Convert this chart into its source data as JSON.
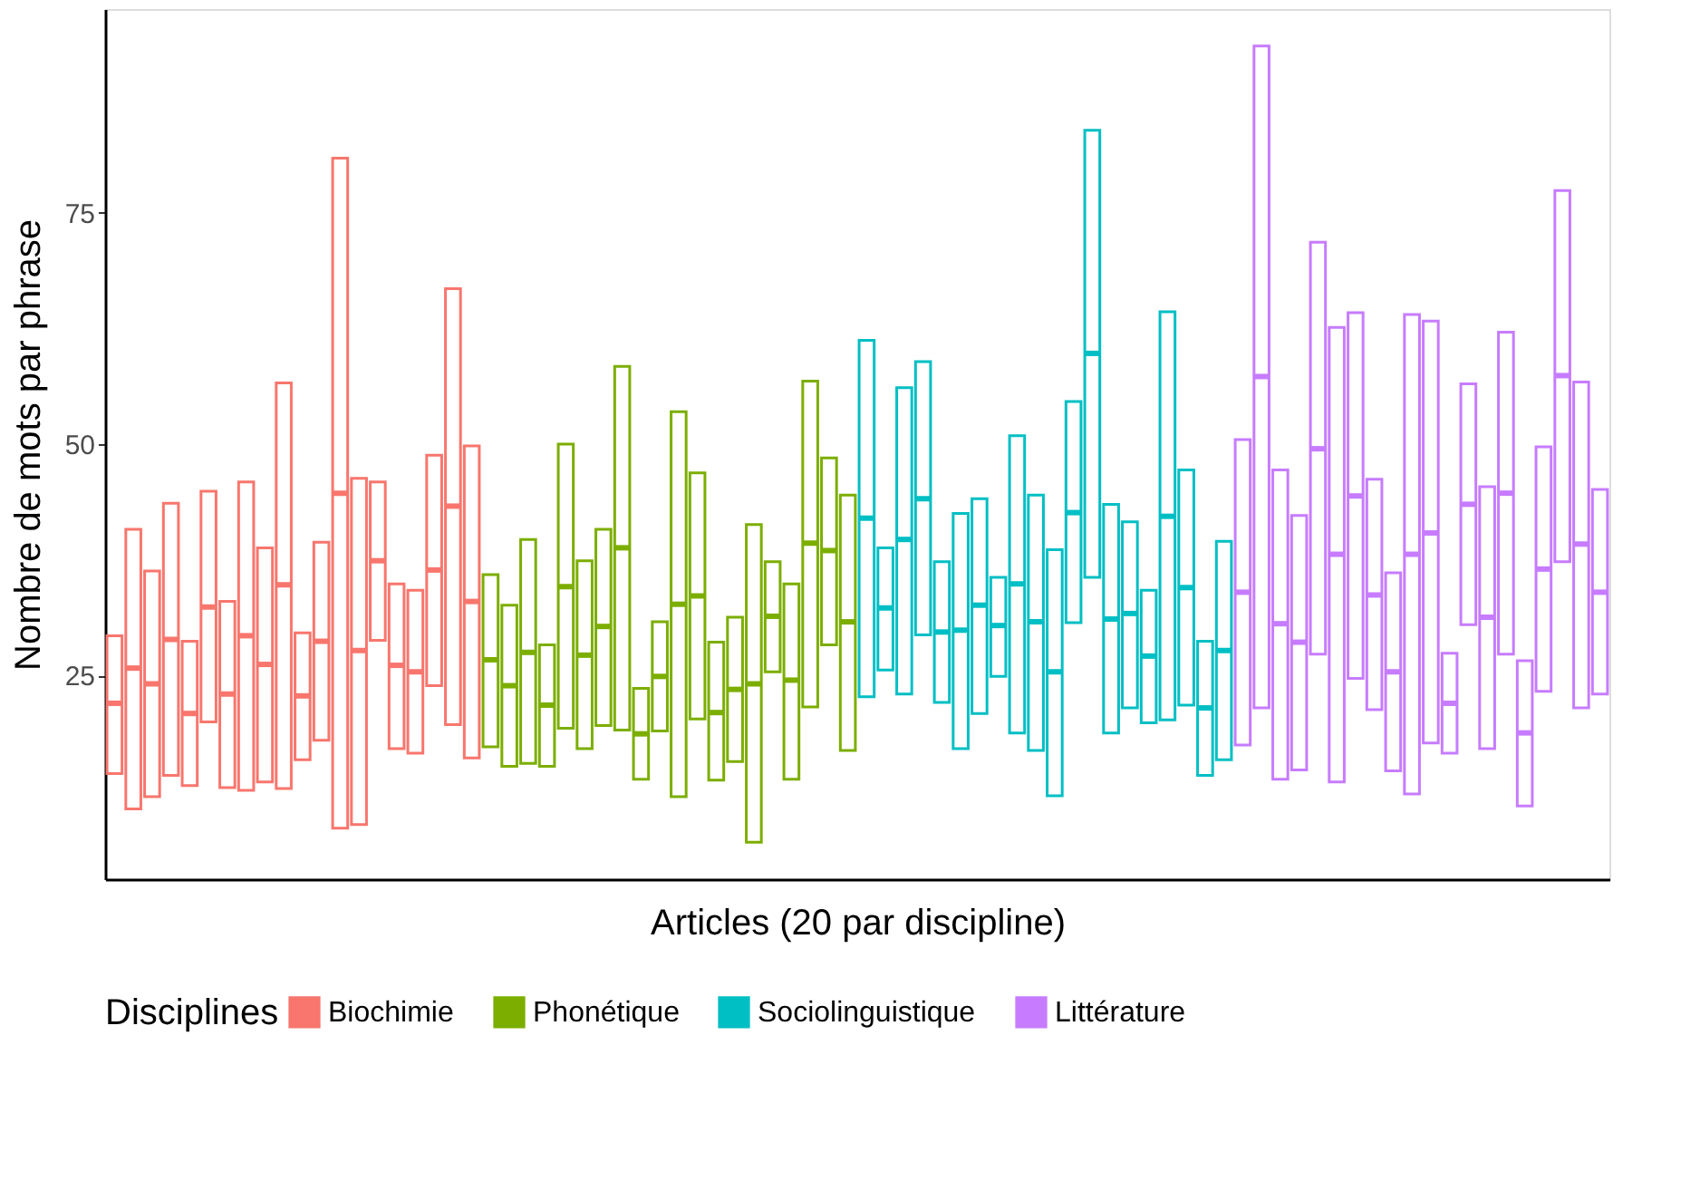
{
  "chart_data": {
    "type": "box",
    "categories": [
      null,
      null,
      null,
      null,
      null,
      null,
      null,
      null,
      null,
      null,
      null,
      null,
      null,
      null,
      null,
      null,
      null,
      null,
      null,
      null,
      null,
      null,
      null,
      null,
      null,
      null,
      null,
      null,
      null,
      null,
      null,
      null,
      null,
      null,
      null,
      null,
      null,
      null,
      null,
      null,
      null,
      null,
      null,
      null,
      null,
      null,
      null,
      null,
      null,
      null,
      null,
      null,
      null,
      null,
      null,
      null,
      null,
      null,
      null,
      null,
      null,
      null,
      null,
      null,
      null,
      null,
      null,
      null,
      null,
      null,
      null,
      null,
      null,
      null,
      null,
      null,
      null,
      null,
      null,
      null
    ],
    "xlabel": "Articles (20 par discipline)",
    "ylabel": "Nombre de mots par phrase",
    "legend_title": "Disciplines",
    "legend": "bottom",
    "grid": false,
    "ylim": [
      3,
      97
    ],
    "yticks": [
      25,
      50,
      75
    ],
    "series": [
      {
        "name": "Biochimie",
        "color": "#f8766d",
        "boxes": [
          {
            "low": 14.4,
            "q1": 14.4,
            "median": 22.0,
            "q3": 29.3,
            "high": 29.3
          },
          {
            "low": 10.6,
            "q1": 10.6,
            "median": 25.8,
            "q3": 40.8,
            "high": 40.8
          },
          {
            "low": 11.9,
            "q1": 11.9,
            "median": 24.1,
            "q3": 36.3,
            "high": 36.3
          },
          {
            "low": 14.2,
            "q1": 14.2,
            "median": 28.9,
            "q3": 43.6,
            "high": 43.6
          },
          {
            "low": 13.1,
            "q1": 13.1,
            "median": 20.9,
            "q3": 28.7,
            "high": 28.7
          },
          {
            "low": 20.0,
            "q1": 20.0,
            "median": 32.4,
            "q3": 44.9,
            "high": 44.9
          },
          {
            "low": 12.9,
            "q1": 12.9,
            "median": 23.0,
            "q3": 33.0,
            "high": 33.0
          },
          {
            "low": 12.6,
            "q1": 12.6,
            "median": 29.3,
            "q3": 45.9,
            "high": 45.9
          },
          {
            "low": 13.5,
            "q1": 13.5,
            "median": 26.2,
            "q3": 38.8,
            "high": 38.8
          },
          {
            "low": 12.8,
            "q1": 12.8,
            "median": 34.8,
            "q3": 56.6,
            "high": 56.6
          },
          {
            "low": 15.9,
            "q1": 15.9,
            "median": 22.8,
            "q3": 29.6,
            "high": 29.6
          },
          {
            "low": 18.0,
            "q1": 18.0,
            "median": 28.7,
            "q3": 39.4,
            "high": 39.4
          },
          {
            "low": 8.5,
            "q1": 8.5,
            "median": 44.7,
            "q3": 80.9,
            "high": 80.9
          },
          {
            "low": 8.9,
            "q1": 8.9,
            "median": 27.7,
            "q3": 46.3,
            "high": 46.3
          },
          {
            "low": 28.8,
            "q1": 28.8,
            "median": 37.4,
            "q3": 45.9,
            "high": 45.9
          },
          {
            "low": 17.1,
            "q1": 17.1,
            "median": 26.1,
            "q3": 34.9,
            "high": 34.9
          },
          {
            "low": 16.6,
            "q1": 16.6,
            "median": 25.4,
            "q3": 34.2,
            "high": 34.2
          },
          {
            "low": 23.9,
            "q1": 23.9,
            "median": 36.4,
            "q3": 48.8,
            "high": 48.8
          },
          {
            "low": 19.7,
            "q1": 19.7,
            "median": 43.3,
            "q3": 66.8,
            "high": 66.8
          },
          {
            "low": 16.1,
            "q1": 16.1,
            "median": 33.0,
            "q3": 49.8,
            "high": 49.8
          },
          null,
          null,
          null,
          null,
          null,
          null,
          null,
          null,
          null,
          null,
          null,
          null,
          null,
          null,
          null,
          null,
          null,
          null,
          null,
          null,
          null,
          null,
          null,
          null,
          null,
          null,
          null,
          null,
          null,
          null,
          null,
          null,
          null,
          null,
          null,
          null,
          null,
          null,
          null,
          null,
          null,
          null,
          null,
          null,
          null,
          null,
          null,
          null,
          null,
          null,
          null,
          null,
          null,
          null,
          null,
          null,
          null,
          null,
          null,
          null
        ]
      },
      {
        "name": "Phonétique",
        "color": "#7cae00",
        "boxes": [
          null,
          null,
          null,
          null,
          null,
          null,
          null,
          null,
          null,
          null,
          null,
          null,
          null,
          null,
          null,
          null,
          null,
          null,
          null,
          null,
          {
            "low": 17.3,
            "q1": 17.3,
            "median": 26.7,
            "q3": 35.9,
            "high": 35.9
          },
          {
            "low": 15.2,
            "q1": 15.2,
            "median": 23.9,
            "q3": 32.6,
            "high": 32.6
          },
          {
            "low": 15.5,
            "q1": 15.5,
            "median": 27.5,
            "q3": 39.7,
            "high": 39.7
          },
          {
            "low": 15.2,
            "q1": 15.2,
            "median": 21.8,
            "q3": 28.3,
            "high": 28.3
          },
          {
            "low": 19.3,
            "q1": 19.3,
            "median": 34.6,
            "q3": 50.0,
            "high": 50.0
          },
          {
            "low": 17.1,
            "q1": 17.1,
            "median": 27.2,
            "q3": 37.4,
            "high": 37.4
          },
          {
            "low": 19.6,
            "q1": 19.6,
            "median": 30.3,
            "q3": 40.8,
            "high": 40.8
          },
          {
            "low": 19.1,
            "q1": 19.1,
            "median": 38.8,
            "q3": 58.4,
            "high": 58.4
          },
          {
            "low": 13.8,
            "q1": 13.8,
            "median": 18.7,
            "q3": 23.6,
            "high": 23.6
          },
          {
            "low": 19.0,
            "q1": 19.0,
            "median": 24.9,
            "q3": 30.8,
            "high": 30.8
          },
          {
            "low": 11.9,
            "q1": 11.9,
            "median": 32.7,
            "q3": 53.5,
            "high": 53.5
          },
          {
            "low": 20.3,
            "q1": 20.3,
            "median": 33.6,
            "q3": 46.9,
            "high": 46.9
          },
          {
            "low": 13.7,
            "q1": 13.7,
            "median": 21.0,
            "q3": 28.6,
            "high": 28.6
          },
          {
            "low": 15.7,
            "q1": 15.7,
            "median": 23.5,
            "q3": 31.3,
            "high": 31.3
          },
          {
            "low": 7.0,
            "q1": 7.0,
            "median": 24.1,
            "q3": 41.3,
            "high": 41.3
          },
          {
            "low": 25.4,
            "q1": 25.4,
            "median": 31.4,
            "q3": 37.3,
            "high": 37.3
          },
          {
            "low": 13.8,
            "q1": 13.8,
            "median": 24.5,
            "q3": 34.9,
            "high": 34.9
          },
          {
            "low": 21.6,
            "q1": 21.6,
            "median": 39.3,
            "q3": 56.8,
            "high": 56.8
          },
          {
            "low": 28.3,
            "q1": 28.3,
            "median": 38.5,
            "q3": 48.5,
            "high": 48.5
          },
          {
            "low": 16.9,
            "q1": 16.9,
            "median": 30.8,
            "q3": 44.5,
            "high": 44.5
          },
          null,
          null,
          null,
          null,
          null,
          null,
          null,
          null,
          null,
          null,
          null,
          null,
          null,
          null,
          null,
          null,
          null,
          null,
          null,
          null,
          null,
          null,
          null,
          null,
          null,
          null,
          null,
          null,
          null,
          null,
          null,
          null,
          null,
          null,
          null,
          null,
          null,
          null,
          null,
          null
        ]
      },
      {
        "name": "Sociolinguistique",
        "color": "#00bfc4",
        "boxes": [
          null,
          null,
          null,
          null,
          null,
          null,
          null,
          null,
          null,
          null,
          null,
          null,
          null,
          null,
          null,
          null,
          null,
          null,
          null,
          null,
          null,
          null,
          null,
          null,
          null,
          null,
          null,
          null,
          null,
          null,
          null,
          null,
          null,
          null,
          null,
          null,
          null,
          null,
          null,
          null,
          {
            "low": 22.7,
            "q1": 22.7,
            "median": 42.0,
            "q3": 61.2,
            "high": 61.2
          },
          {
            "low": 25.6,
            "q1": 25.6,
            "median": 32.3,
            "q3": 38.8,
            "high": 38.8
          },
          {
            "low": 23.0,
            "q1": 23.0,
            "median": 39.7,
            "q3": 56.1,
            "high": 56.1
          },
          {
            "low": 29.4,
            "q1": 29.4,
            "median": 44.1,
            "q3": 58.9,
            "high": 58.9
          },
          {
            "low": 22.1,
            "q1": 22.1,
            "median": 29.7,
            "q3": 37.3,
            "high": 37.3
          },
          {
            "low": 17.1,
            "q1": 17.1,
            "median": 29.9,
            "q3": 42.5,
            "high": 42.5
          },
          {
            "low": 20.9,
            "q1": 20.9,
            "median": 32.6,
            "q3": 44.1,
            "high": 44.1
          },
          {
            "low": 24.9,
            "q1": 24.9,
            "median": 30.4,
            "q3": 35.6,
            "high": 35.6
          },
          {
            "low": 18.8,
            "q1": 18.8,
            "median": 34.9,
            "q3": 50.9,
            "high": 50.9
          },
          {
            "low": 16.9,
            "q1": 16.9,
            "median": 30.8,
            "q3": 44.5,
            "high": 44.5
          },
          {
            "low": 12.0,
            "q1": 12.0,
            "median": 25.4,
            "q3": 38.6,
            "high": 38.6
          },
          {
            "low": 30.7,
            "q1": 30.7,
            "median": 42.6,
            "q3": 54.6,
            "high": 54.6
          },
          {
            "low": 35.6,
            "q1": 35.6,
            "median": 59.8,
            "q3": 83.9,
            "high": 83.9
          },
          {
            "low": 18.8,
            "q1": 18.8,
            "median": 31.1,
            "q3": 43.5,
            "high": 43.5
          },
          {
            "low": 21.5,
            "q1": 21.5,
            "median": 31.7,
            "q3": 41.6,
            "high": 41.6
          },
          {
            "low": 19.9,
            "q1": 19.9,
            "median": 27.1,
            "q3": 34.2,
            "high": 34.2
          },
          {
            "low": 20.2,
            "q1": 20.2,
            "median": 42.2,
            "q3": 64.3,
            "high": 64.3
          },
          {
            "low": 21.8,
            "q1": 21.8,
            "median": 34.5,
            "q3": 47.2,
            "high": 47.2
          },
          {
            "low": 14.2,
            "q1": 14.2,
            "median": 21.5,
            "q3": 28.7,
            "high": 28.7
          },
          {
            "low": 15.9,
            "q1": 15.9,
            "median": 27.7,
            "q3": 39.5,
            "high": 39.5
          },
          null,
          null,
          null,
          null,
          null,
          null,
          null,
          null,
          null,
          null,
          null,
          null,
          null,
          null,
          null,
          null,
          null,
          null,
          null,
          null
        ]
      },
      {
        "name": "Littérature",
        "color": "#c77cff",
        "boxes": [
          null,
          null,
          null,
          null,
          null,
          null,
          null,
          null,
          null,
          null,
          null,
          null,
          null,
          null,
          null,
          null,
          null,
          null,
          null,
          null,
          null,
          null,
          null,
          null,
          null,
          null,
          null,
          null,
          null,
          null,
          null,
          null,
          null,
          null,
          null,
          null,
          null,
          null,
          null,
          null,
          null,
          null,
          null,
          null,
          null,
          null,
          null,
          null,
          null,
          null,
          null,
          null,
          null,
          null,
          null,
          null,
          null,
          null,
          null,
          null,
          {
            "low": 17.5,
            "q1": 17.5,
            "median": 34.0,
            "q3": 50.5,
            "high": 50.5
          },
          {
            "low": 21.5,
            "q1": 21.5,
            "median": 57.3,
            "q3": 93.0,
            "high": 93.0
          },
          {
            "low": 13.8,
            "q1": 13.8,
            "median": 30.6,
            "q3": 47.2,
            "high": 47.2
          },
          {
            "low": 14.8,
            "q1": 14.8,
            "median": 28.6,
            "q3": 42.3,
            "high": 42.3
          },
          {
            "low": 27.3,
            "q1": 27.3,
            "median": 49.5,
            "q3": 71.8,
            "high": 71.8
          },
          {
            "low": 13.5,
            "q1": 13.5,
            "median": 38.1,
            "q3": 62.6,
            "high": 62.6
          },
          {
            "low": 24.7,
            "q1": 24.7,
            "median": 44.4,
            "q3": 64.2,
            "high": 64.2
          },
          {
            "low": 21.3,
            "q1": 21.3,
            "median": 33.7,
            "q3": 46.2,
            "high": 46.2
          },
          {
            "low": 14.7,
            "q1": 14.7,
            "median": 25.4,
            "q3": 36.1,
            "high": 36.1
          },
          {
            "low": 12.2,
            "q1": 12.2,
            "median": 38.1,
            "q3": 64.0,
            "high": 64.0
          },
          {
            "low": 17.7,
            "q1": 17.7,
            "median": 40.4,
            "q3": 63.3,
            "high": 63.3
          },
          {
            "low": 16.6,
            "q1": 16.6,
            "median": 22.0,
            "q3": 27.4,
            "high": 27.4
          },
          {
            "low": 30.5,
            "q1": 30.5,
            "median": 43.5,
            "q3": 56.5,
            "high": 56.5
          },
          {
            "low": 17.1,
            "q1": 17.1,
            "median": 31.3,
            "q3": 45.4,
            "high": 45.4
          },
          {
            "low": 27.3,
            "q1": 27.3,
            "median": 44.7,
            "q3": 62.1,
            "high": 62.1
          },
          {
            "low": 10.9,
            "q1": 10.9,
            "median": 18.8,
            "q3": 26.6,
            "high": 26.6
          },
          {
            "low": 23.3,
            "q1": 23.3,
            "median": 36.5,
            "q3": 49.7,
            "high": 49.7
          },
          {
            "low": 37.3,
            "q1": 37.3,
            "median": 57.4,
            "q3": 77.4,
            "high": 77.4
          },
          {
            "low": 21.5,
            "q1": 21.5,
            "median": 39.2,
            "q3": 56.7,
            "high": 56.7
          },
          {
            "low": 23.0,
            "q1": 23.0,
            "median": 34.0,
            "q3": 45.1,
            "high": 45.1
          }
        ]
      }
    ]
  }
}
